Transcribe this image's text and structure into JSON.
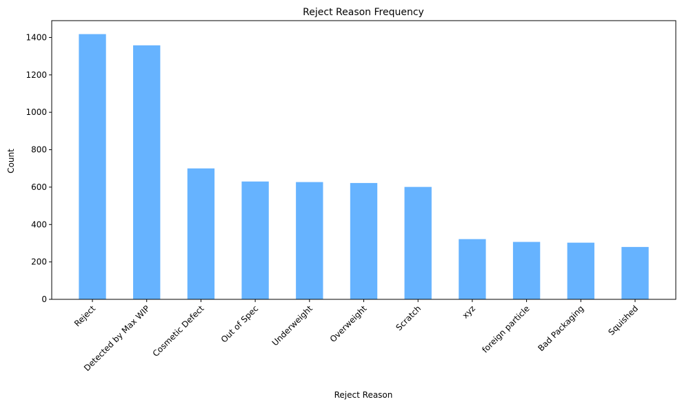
{
  "chart_data": {
    "type": "bar",
    "title": "Reject Reason Frequency",
    "xlabel": "Reject Reason",
    "ylabel": "Count",
    "categories": [
      "Reject",
      "Detected by Max WIP",
      "Cosmetic Defect",
      "Out of Spec",
      "Underweight",
      "Overweight",
      "Scratch",
      "xyz",
      "foreign particle",
      "Bad Packaging",
      "Squished"
    ],
    "values": [
      1418,
      1358,
      700,
      630,
      627,
      622,
      601,
      322,
      307,
      303,
      280
    ],
    "ylim": [
      0,
      1490
    ],
    "yticks": [
      0,
      200,
      400,
      600,
      800,
      1000,
      1200,
      1400
    ],
    "bar_color": "#66b3ff",
    "grid": false,
    "legend": "none"
  }
}
